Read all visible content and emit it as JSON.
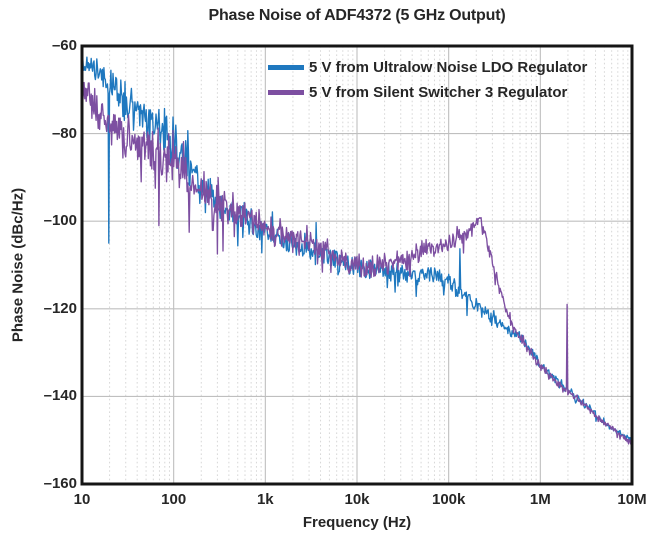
{
  "title": "Phase Noise of ADF4372 (5 GHz Output)",
  "text_color": "#262626",
  "chart_data": {
    "type": "line",
    "title": "Phase Noise of ADF4372 (5 GHz Output)",
    "xlabel": "Frequency (Hz)",
    "ylabel": "Phase Noise (dBc/Hz)",
    "x_scale": "log",
    "x_range_hz": [
      10,
      10000000
    ],
    "y_range_dbchz": [
      -160,
      -60
    ],
    "x_tick_labels": [
      "10",
      "100",
      "1k",
      "10k",
      "100k",
      "1M",
      "10M"
    ],
    "y_tick_labels": [
      "–60",
      "–80",
      "–100",
      "–120",
      "–140",
      "–160"
    ],
    "grid": {
      "major": true,
      "minor_vertical_dotted": true,
      "major_color": "#bfbfbf",
      "minor_color": "#d7d7d7",
      "frame_color": "#151515",
      "background": "#ffffff"
    },
    "legend_position": "top-right-inside",
    "points_per_decade": 130,
    "series": [
      {
        "name": "5 V from Ultralow Noise LDO Regulator",
        "color": "#1f78bf",
        "seed": 20240,
        "profile_logf_mean_noise": [
          [
            1.0,
            -64.0,
            2.5
          ],
          [
            1.1,
            -64.5,
            3.0
          ],
          [
            1.2,
            -66.5,
            4.0
          ],
          [
            1.3,
            -69.0,
            5.0
          ],
          [
            1.45,
            -72.0,
            5.0
          ],
          [
            1.6,
            -75.0,
            5.5
          ],
          [
            1.75,
            -77.5,
            6.0
          ],
          [
            1.9,
            -80.0,
            6.5
          ],
          [
            2.0,
            -82.0,
            7.0
          ],
          [
            2.2,
            -90.0,
            6.0
          ],
          [
            2.4,
            -94.5,
            5.0
          ],
          [
            2.6,
            -97.5,
            4.5
          ],
          [
            2.8,
            -100.0,
            4.0
          ],
          [
            3.0,
            -102.8,
            3.5
          ],
          [
            3.3,
            -105.3,
            3.2
          ],
          [
            3.6,
            -107.5,
            3.0
          ],
          [
            3.85,
            -109.5,
            3.0
          ],
          [
            4.1,
            -110.8,
            2.9
          ],
          [
            4.5,
            -111.3,
            2.8
          ],
          [
            4.8,
            -112.5,
            2.6
          ],
          [
            5.0,
            -114.0,
            2.4
          ],
          [
            5.18,
            -117.0,
            2.2
          ],
          [
            5.34,
            -119.8,
            2.0
          ],
          [
            5.48,
            -122.0,
            1.9
          ],
          [
            5.6,
            -124.0,
            1.8
          ],
          [
            5.7,
            -125.3,
            1.7
          ],
          [
            5.78,
            -126.2,
            1.6
          ],
          [
            5.85,
            -128.0,
            1.5
          ],
          [
            6.0,
            -132.7,
            1.4
          ],
          [
            6.18,
            -136.6,
            1.3
          ],
          [
            6.3,
            -138.5,
            1.2
          ],
          [
            6.48,
            -141.7,
            1.1
          ],
          [
            6.7,
            -145.9,
            1.0
          ],
          [
            6.85,
            -148.0,
            0.9
          ],
          [
            7.0,
            -150.0,
            0.9
          ]
        ],
        "spikes_logf_value": [
          [
            1.295,
            -105.0
          ],
          [
            3.55,
            -100.3
          ],
          [
            5.12,
            -106.3
          ]
        ]
      },
      {
        "name": "5 V from Silent Switcher 3 Regulator",
        "color": "#7d4fa1",
        "seed": 91731,
        "profile_logf_mean_noise": [
          [
            1.0,
            -70.0,
            4.0
          ],
          [
            1.08,
            -70.5,
            4.5
          ],
          [
            1.2,
            -75.5,
            5.0
          ],
          [
            1.35,
            -79.0,
            5.0
          ],
          [
            1.5,
            -81.5,
            5.0
          ],
          [
            1.65,
            -82.5,
            5.5
          ],
          [
            1.8,
            -83.5,
            6.0
          ],
          [
            2.0,
            -86.5,
            6.5
          ],
          [
            2.2,
            -91.5,
            6.0
          ],
          [
            2.4,
            -95.0,
            5.5
          ],
          [
            2.6,
            -97.5,
            5.0
          ],
          [
            2.8,
            -99.5,
            4.5
          ],
          [
            3.0,
            -101.5,
            4.0
          ],
          [
            3.3,
            -104.0,
            3.6
          ],
          [
            3.6,
            -106.5,
            3.3
          ],
          [
            3.85,
            -109.0,
            3.1
          ],
          [
            4.05,
            -110.5,
            3.0
          ],
          [
            4.2,
            -110.4,
            3.0
          ],
          [
            4.5,
            -108.6,
            3.0
          ],
          [
            4.8,
            -106.3,
            2.8
          ],
          [
            5.0,
            -105.0,
            2.6
          ],
          [
            5.18,
            -103.3,
            2.2
          ],
          [
            5.27,
            -100.9,
            1.7
          ],
          [
            5.34,
            -99.2,
            1.4
          ],
          [
            5.4,
            -103.0,
            1.6
          ],
          [
            5.48,
            -110.0,
            1.6
          ],
          [
            5.6,
            -118.0,
            1.5
          ],
          [
            5.7,
            -124.0,
            1.5
          ],
          [
            5.78,
            -126.5,
            1.4
          ],
          [
            5.85,
            -128.5,
            1.4
          ],
          [
            6.0,
            -133.0,
            1.3
          ],
          [
            6.18,
            -137.0,
            1.2
          ],
          [
            6.3,
            -138.9,
            1.1
          ],
          [
            6.48,
            -142.0,
            1.0
          ],
          [
            6.7,
            -146.2,
            1.0
          ],
          [
            6.85,
            -148.4,
            0.9
          ],
          [
            7.0,
            -150.7,
            0.8
          ]
        ],
        "spikes_logf_value": [
          [
            1.84,
            -101.0
          ],
          [
            1.99,
            -79.3
          ],
          [
            2.17,
            -102.5
          ],
          [
            2.48,
            -107.5
          ],
          [
            6.29,
            -119.0
          ],
          [
            6.565,
            -143.3
          ]
        ]
      }
    ]
  }
}
